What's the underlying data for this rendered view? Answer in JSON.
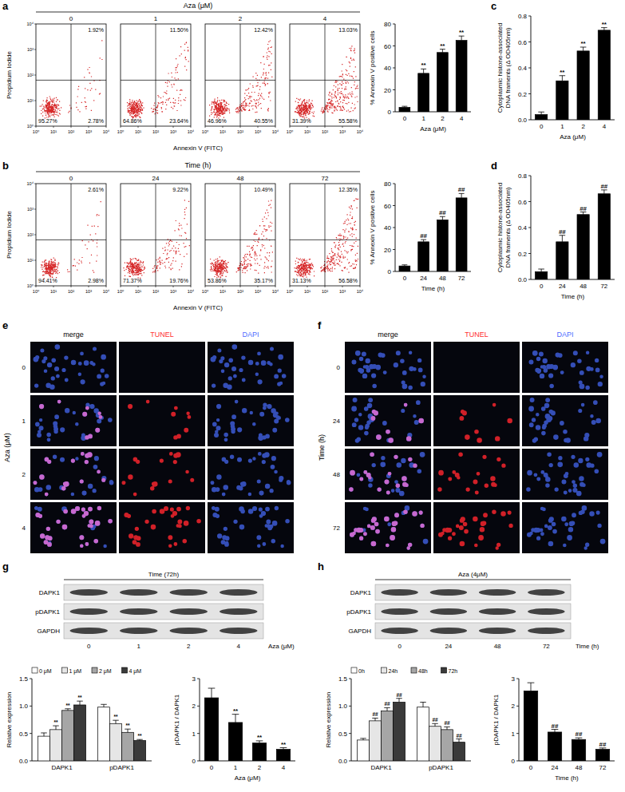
{
  "panel_labels": [
    "a",
    "b",
    "c",
    "d",
    "e",
    "f",
    "g",
    "h"
  ],
  "flow": [
    {
      "header": "Aza (μM)",
      "y_label": "Propidium Iodide",
      "x_label": "Annexin V (FITC)",
      "axis_ticks": [
        "10⁰",
        "10¹",
        "10²",
        "10³",
        "10⁴"
      ],
      "plots": [
        {
          "title": "0",
          "upper_right": "1.92%",
          "lower_left": "95.27%",
          "lower_right": "2.78%"
        },
        {
          "title": "1",
          "upper_right": "11.50%",
          "lower_left": "64.86%",
          "lower_right": "23.64%"
        },
        {
          "title": "2",
          "upper_right": "12.42%",
          "lower_left": "46.96%",
          "lower_right": "40.55%"
        },
        {
          "title": "4",
          "upper_right": "13.03%",
          "lower_left": "31.39%",
          "lower_right": "55.58%"
        }
      ]
    },
    {
      "header": "Time (h)",
      "y_label": "Propidium Iodide",
      "x_label": "Annexin V (FITC)",
      "axis_ticks": [
        "10⁰",
        "10¹",
        "10²",
        "10³",
        "10⁴"
      ],
      "plots": [
        {
          "title": "0",
          "upper_right": "2.61%",
          "lower_left": "94.41%",
          "lower_right": "2.98%"
        },
        {
          "title": "24",
          "upper_right": "9.22%",
          "lower_left": "71.37%",
          "lower_right": "19.76%"
        },
        {
          "title": "48",
          "upper_right": "10.49%",
          "lower_left": "53.86%",
          "lower_right": "35.17%"
        },
        {
          "title": "72",
          "upper_right": "12.35%",
          "lower_left": "31.13%",
          "lower_right": "56.58%"
        }
      ]
    }
  ],
  "chart_data": [
    {
      "type": "bar",
      "categories": [
        "0",
        "1",
        "2",
        "4"
      ],
      "values": [
        4,
        35,
        54,
        65
      ],
      "errors": [
        1,
        4,
        3,
        4
      ],
      "annotations": [
        null,
        "**",
        "**",
        "**"
      ],
      "y_label": "% Annexin V positive cells",
      "x_label": "Aza (μM)",
      "ylim": [
        0,
        80
      ],
      "yticks": [
        0,
        20,
        40,
        60,
        80
      ],
      "color": "#000000"
    },
    {
      "type": "bar",
      "categories": [
        "0",
        "24",
        "48",
        "72"
      ],
      "values": [
        5,
        27,
        47,
        67
      ],
      "errors": [
        1,
        2,
        3,
        4
      ],
      "annotations": [
        null,
        "##",
        "##",
        "##"
      ],
      "y_label": "% Annexin V positive cells",
      "x_label": "Time (h)",
      "ylim": [
        0,
        80
      ],
      "yticks": [
        0,
        20,
        40,
        60,
        80
      ],
      "color": "#000000"
    },
    {
      "type": "bar",
      "categories": [
        "0",
        "1",
        "2",
        "4"
      ],
      "values": [
        0.04,
        0.3,
        0.53,
        0.69
      ],
      "errors": [
        0.02,
        0.04,
        0.03,
        0.02
      ],
      "annotations": [
        null,
        "**",
        "**",
        "**"
      ],
      "y_label": "Cytoplasmic histone-associated DNA framents (Δ OD405nm)",
      "x_label": "Aza (μM)",
      "ylim": [
        0,
        0.8
      ],
      "yticks": [
        {
          "value": 0,
          "label": "0.0"
        },
        {
          "value": 0.2,
          "label": "0.2"
        },
        {
          "value": 0.4,
          "label": "0.4"
        },
        {
          "value": 0.6,
          "label": "0.6"
        },
        {
          "value": 0.8,
          "label": "0.8"
        }
      ],
      "color": "#000000"
    },
    {
      "type": "bar",
      "categories": [
        "0",
        "24",
        "48",
        "72"
      ],
      "values": [
        0.06,
        0.29,
        0.5,
        0.66
      ],
      "errors": [
        0.02,
        0.05,
        0.02,
        0.03
      ],
      "annotations": [
        null,
        "##",
        "##",
        "##"
      ],
      "y_label": "Cytoplasmic histone-associated DNA framents (Δ OD405nm)",
      "x_label": "Time (h)",
      "ylim": [
        0,
        0.8
      ],
      "yticks": [
        {
          "value": 0,
          "label": "0.0"
        },
        {
          "value": 0.2,
          "label": "0.2"
        },
        {
          "value": 0.4,
          "label": "0.4"
        },
        {
          "value": 0.6,
          "label": "0.6"
        },
        {
          "value": 0.8,
          "label": "0.8"
        }
      ],
      "color": "#000000"
    },
    {
      "type": "bar",
      "categories": [
        "DAPK1",
        "pDAPK1"
      ],
      "y_label": "Relative expression",
      "legend": "top",
      "ylim": [
        0,
        1.5
      ],
      "yticks": [
        {
          "value": 0,
          "label": "0.0"
        },
        {
          "value": 0.5,
          "label": "0.5"
        },
        {
          "value": 1,
          "label": "1.0"
        },
        {
          "value": 1.5,
          "label": "1.5"
        }
      ],
      "series": [
        {
          "name": "0 μM",
          "color": "#ffffff",
          "values": [
            0.45,
            0.98
          ],
          "errors": [
            0.06,
            0.05
          ]
        },
        {
          "name": "1 μM",
          "color": "#e6e6e6",
          "values": [
            0.57,
            0.68
          ],
          "errors": [
            0.07,
            0.06
          ],
          "annotations": [
            "**",
            "**"
          ]
        },
        {
          "name": "2 μM",
          "color": "#a6a6a6",
          "values": [
            0.92,
            0.52
          ],
          "errors": [
            0.03,
            0.06
          ],
          "annotations": [
            "**",
            "**"
          ]
        },
        {
          "name": "4 μM",
          "color": "#3a3a3a",
          "values": [
            1.02,
            0.37
          ],
          "errors": [
            0.07,
            0.02
          ],
          "annotations": [
            "**",
            "**"
          ]
        }
      ]
    },
    {
      "type": "bar",
      "categories": [
        "0",
        "1",
        "2",
        "4"
      ],
      "values": [
        2.3,
        1.4,
        0.65,
        0.42
      ],
      "errors": [
        0.35,
        0.3,
        0.08,
        0.06
      ],
      "annotations": [
        null,
        "**",
        "**",
        "**"
      ],
      "y_label": "pDAPK1 / DAPK1",
      "x_label": "Aza (μM)",
      "ylim": [
        0,
        3
      ],
      "yticks": [
        0,
        1,
        2,
        3
      ],
      "color": "#000000"
    },
    {
      "type": "bar",
      "categories": [
        "DAPK1",
        "pDAPK1"
      ],
      "y_label": "Relative expression",
      "legend": "top",
      "ylim": [
        0,
        1.5
      ],
      "yticks": [
        {
          "value": 0,
          "label": "0.0"
        },
        {
          "value": 0.5,
          "label": "0.5"
        },
        {
          "value": 1,
          "label": "1.0"
        },
        {
          "value": 1.5,
          "label": "1.5"
        }
      ],
      "series": [
        {
          "name": "0h",
          "color": "#ffffff",
          "values": [
            0.38,
            0.98
          ],
          "errors": [
            0.03,
            0.09
          ]
        },
        {
          "name": "24h",
          "color": "#e6e6e6",
          "values": [
            0.73,
            0.63
          ],
          "errors": [
            0.05,
            0.05
          ],
          "annotations": [
            "##",
            "##"
          ]
        },
        {
          "name": "48h",
          "color": "#a6a6a6",
          "values": [
            0.91,
            0.57
          ],
          "errors": [
            0.06,
            0.05
          ],
          "annotations": [
            "##",
            "##"
          ]
        },
        {
          "name": "72h",
          "color": "#3a3a3a",
          "values": [
            1.07,
            0.34
          ],
          "errors": [
            0.07,
            0.06
          ],
          "annotations": [
            "##",
            "##"
          ]
        }
      ]
    },
    {
      "type": "bar",
      "categories": [
        "0",
        "24",
        "48",
        "72"
      ],
      "values": [
        2.55,
        1.05,
        0.78,
        0.42
      ],
      "errors": [
        0.3,
        0.1,
        0.06,
        0.05
      ],
      "annotations": [
        null,
        "##",
        "##",
        "##"
      ],
      "y_label": "pDAPK1 / DAPK1",
      "x_label": "Time (h)",
      "ylim": [
        0,
        3
      ],
      "yticks": [
        0,
        1,
        2,
        3
      ],
      "color": "#000000"
    }
  ],
  "tunel": [
    {
      "side_label": "Aza (μM)",
      "columns": [
        "merge",
        "TUNEL",
        "DAPI"
      ],
      "rows": [
        "0",
        "1",
        "2",
        "4"
      ]
    },
    {
      "side_label": "Time (h)",
      "columns": [
        "merge",
        "TUNEL",
        "DAPI"
      ],
      "rows": [
        "0",
        "24",
        "48",
        "72"
      ]
    }
  ],
  "blots": [
    {
      "header": "Time (72h)",
      "rows": [
        "DAPK1",
        "pDAPK1",
        "GAPDH"
      ],
      "lanes": [
        "0",
        "1",
        "2",
        "4"
      ],
      "x_label": "Aza (μM)"
    },
    {
      "header": "Aza (4μM)",
      "rows": [
        "DAPK1",
        "pDAPK1",
        "GAPDH"
      ],
      "lanes": [
        "0",
        "24",
        "48",
        "72"
      ],
      "x_label": "Time (h)"
    }
  ]
}
